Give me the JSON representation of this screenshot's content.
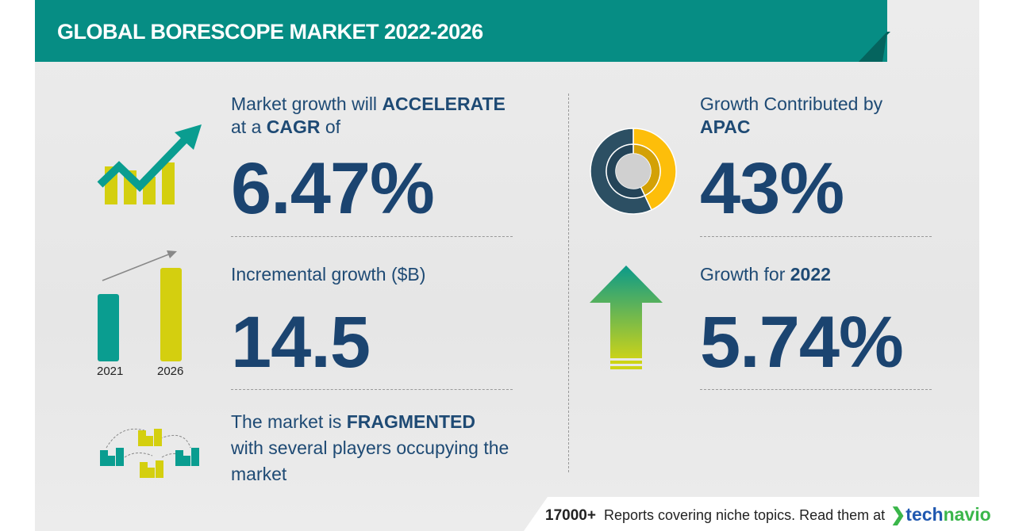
{
  "header": {
    "title": "GLOBAL BORESCOPE MARKET 2022-2026"
  },
  "cagr": {
    "label_pre": "Market growth will",
    "label_strong": "ACCELERATE",
    "label_line2_pre": "at a",
    "label_line2_strong": "CAGR",
    "label_line2_post": "of",
    "value": "6.47%",
    "icon": "trending-up-chart-icon"
  },
  "incremental": {
    "label": "Incremental growth ($B)",
    "value": "14.5",
    "icon": "bar-comparison-icon",
    "years": [
      "2021",
      "2026"
    ]
  },
  "market": {
    "line1_pre": "The market is",
    "line1_strong": "FRAGMENTED",
    "line2": "with several players occupying the",
    "line3": "market",
    "icon": "buildings-network-icon"
  },
  "region": {
    "label": "Growth Contributed by",
    "region": "APAC",
    "value": "43%",
    "share_percent": 43,
    "icon": "donut-chart-icon"
  },
  "yoy": {
    "label": "Growth for",
    "year": "2022",
    "value": "5.74%",
    "icon": "up-arrow-icon"
  },
  "footer": {
    "count": "17000+",
    "text": "Reports covering niche topics. Read them at",
    "brand_a": "tech",
    "brand_b": "navio"
  },
  "colors": {
    "teal": "#068d84",
    "navy": "#1b4470",
    "yellow": "#d4cf0f",
    "donut_yellow": "#fdbe0a",
    "donut_navy": "#2c4f63"
  }
}
